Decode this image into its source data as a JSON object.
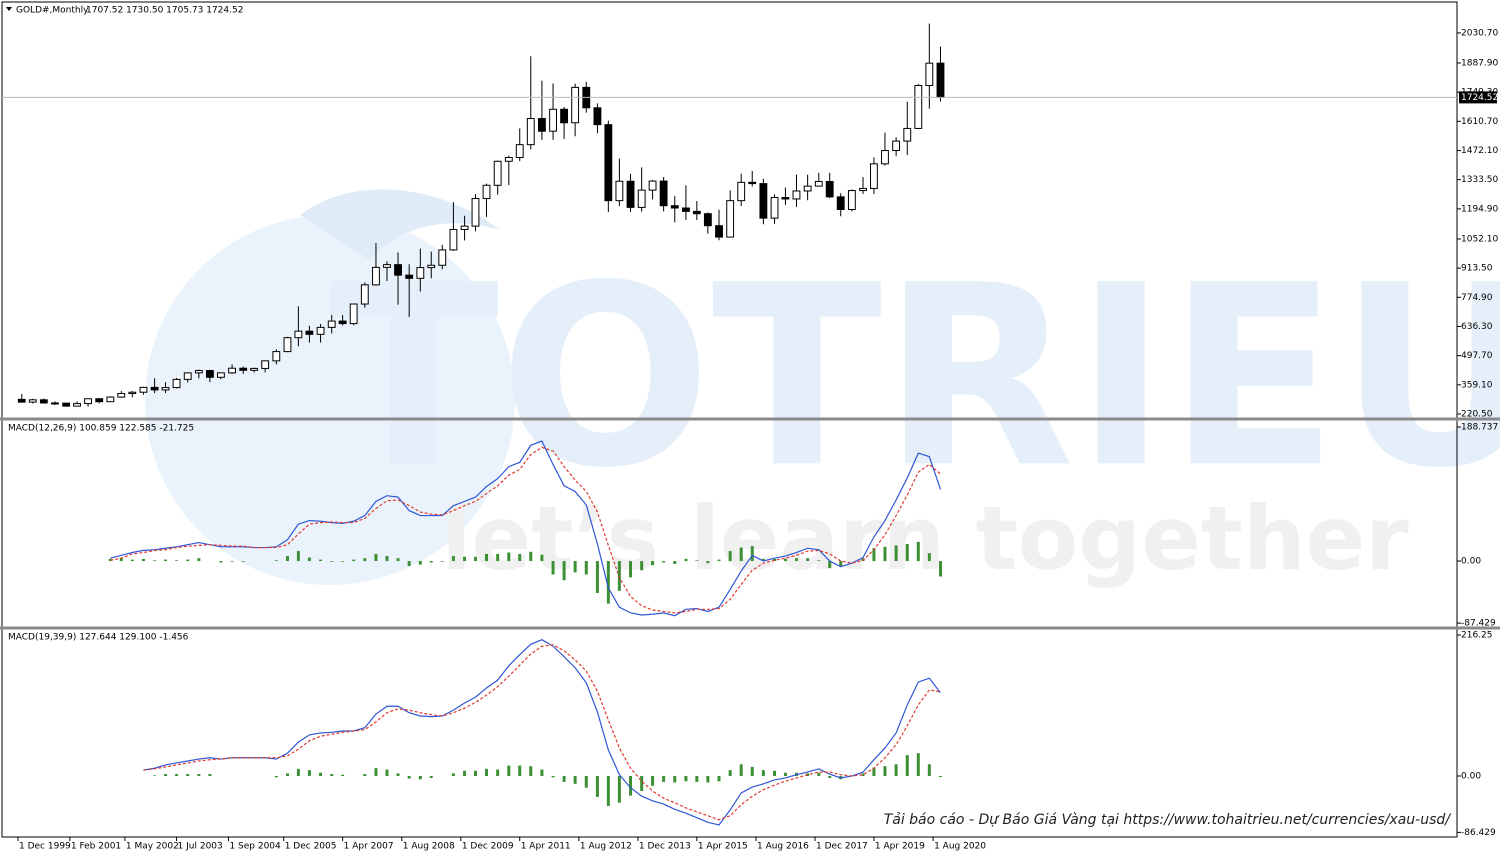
{
  "chart_data": [
    {
      "type": "candlestick",
      "title": "GOLD#,Monthly",
      "subtitle": "1707.52 1730.50 1705.73 1724.52",
      "x": [
        "2000-01-01",
        "2000-04-01",
        "2000-07-01",
        "2000-10-01",
        "2001-01-01",
        "2001-04-01",
        "2001-07-01",
        "2001-10-01",
        "2002-01-01",
        "2002-04-01",
        "2002-07-01",
        "2002-10-01",
        "2003-01-01",
        "2003-04-01",
        "2003-07-01",
        "2003-10-01",
        "2004-01-01",
        "2004-04-01",
        "2004-07-01",
        "2004-10-01",
        "2005-01-01",
        "2005-04-01",
        "2005-07-01",
        "2005-10-01",
        "2006-01-01",
        "2006-04-01",
        "2006-07-01",
        "2006-10-01",
        "2007-01-01",
        "2007-04-01",
        "2007-07-01",
        "2007-10-01",
        "2008-01-01",
        "2008-04-01",
        "2008-07-01",
        "2008-10-01",
        "2009-01-01",
        "2009-04-01",
        "2009-07-01",
        "2009-10-01",
        "2010-01-01",
        "2010-04-01",
        "2010-07-01",
        "2010-10-01",
        "2011-01-01",
        "2011-04-01",
        "2011-07-01",
        "2011-10-01",
        "2012-01-01",
        "2012-04-01",
        "2012-07-01",
        "2012-10-01",
        "2013-01-01",
        "2013-04-01",
        "2013-07-01",
        "2013-10-01",
        "2014-01-01",
        "2014-04-01",
        "2014-07-01",
        "2014-10-01",
        "2015-01-01",
        "2015-04-01",
        "2015-07-01",
        "2015-10-01",
        "2016-01-01",
        "2016-04-01",
        "2016-07-01",
        "2016-10-01",
        "2017-01-01",
        "2017-04-01",
        "2017-07-01",
        "2017-10-01",
        "2018-01-01",
        "2018-04-01",
        "2018-07-01",
        "2018-10-01",
        "2019-01-01",
        "2019-04-01",
        "2019-07-01",
        "2019-10-01",
        "2020-01-01",
        "2020-04-01",
        "2020-07-01",
        "2020-10-01"
      ],
      "open": [
        290,
        277,
        288,
        273,
        272,
        258,
        270,
        293,
        279,
        301,
        318,
        324,
        347,
        335,
        346,
        385,
        416,
        427,
        395,
        416,
        438,
        428,
        437,
        473,
        517,
        583,
        614,
        599,
        632,
        662,
        650,
        743,
        834,
        917,
        930,
        880,
        865,
        916,
        927,
        1000,
        1097,
        1113,
        1244,
        1307,
        1421,
        1439,
        1500,
        1624,
        1564,
        1668,
        1604,
        1772,
        1675,
        1595,
        1234,
        1326,
        1202,
        1284,
        1327,
        1210,
        1199,
        1183,
        1172,
        1115,
        1061,
        1234,
        1321,
        1315,
        1151,
        1249,
        1242,
        1280,
        1303,
        1325,
        1252,
        1192,
        1282,
        1292,
        1409,
        1472,
        1517,
        1577,
        1781,
        1887
      ],
      "high": [
        316,
        293,
        294,
        281,
        274,
        280,
        294,
        296,
        305,
        330,
        330,
        350,
        390,
        372,
        392,
        418,
        432,
        431,
        418,
        456,
        446,
        441,
        475,
        528,
        587,
        732,
        640,
        648,
        691,
        691,
        745,
        845,
        1033,
        946,
        988,
        932,
        1006,
        992,
        1024,
        1227,
        1162,
        1265,
        1315,
        1424,
        1448,
        1577,
        1920,
        1804,
        1791,
        1679,
        1790,
        1798,
        1696,
        1614,
        1434,
        1361,
        1392,
        1332,
        1346,
        1256,
        1307,
        1232,
        1178,
        1191,
        1283,
        1362,
        1375,
        1338,
        1264,
        1296,
        1358,
        1357,
        1366,
        1366,
        1269,
        1287,
        1346,
        1439,
        1557,
        1535,
        1704,
        1788,
        2075,
        1966
      ],
      "low": [
        275,
        270,
        270,
        263,
        255,
        256,
        256,
        271,
        277,
        297,
        300,
        312,
        320,
        320,
        342,
        370,
        390,
        372,
        386,
        411,
        411,
        418,
        418,
        456,
        514,
        542,
        560,
        560,
        603,
        641,
        642,
        725,
        830,
        852,
        740,
        681,
        802,
        865,
        908,
        995,
        1045,
        1088,
        1157,
        1262,
        1308,
        1422,
        1478,
        1523,
        1523,
        1527,
        1540,
        1652,
        1554,
        1180,
        1208,
        1180,
        1182,
        1240,
        1183,
        1131,
        1142,
        1142,
        1077,
        1046,
        1061,
        1208,
        1302,
        1122,
        1124,
        1214,
        1204,
        1236,
        1302,
        1246,
        1160,
        1183,
        1266,
        1266,
        1400,
        1445,
        1451,
        1576,
        1671,
        1705
      ],
      "close": [
        277,
        288,
        273,
        272,
        258,
        270,
        293,
        279,
        301,
        318,
        324,
        347,
        335,
        346,
        385,
        416,
        427,
        395,
        416,
        438,
        428,
        437,
        473,
        517,
        583,
        614,
        599,
        632,
        662,
        650,
        743,
        834,
        917,
        930,
        880,
        865,
        916,
        927,
        1000,
        1097,
        1113,
        1244,
        1307,
        1421,
        1439,
        1500,
        1624,
        1564,
        1668,
        1604,
        1772,
        1675,
        1595,
        1234,
        1326,
        1202,
        1284,
        1327,
        1210,
        1199,
        1183,
        1172,
        1115,
        1061,
        1234,
        1321,
        1315,
        1151,
        1249,
        1242,
        1280,
        1303,
        1325,
        1252,
        1192,
        1282,
        1292,
        1409,
        1472,
        1517,
        1577,
        1781,
        1887,
        1724.52
      ],
      "color": "#000000",
      "current_price": 1724.52,
      "ylim": [
        206.3,
        2177.6
      ],
      "yticks": [
        {
          "value": 2030.7,
          "label": "2030.70"
        },
        {
          "value": 1887.9,
          "label": "1887.90"
        },
        {
          "value": 1749.3,
          "label": "1749.30"
        },
        {
          "value": 1610.7,
          "label": "1610.70"
        },
        {
          "value": 1472.1,
          "label": "1472.10"
        },
        {
          "value": 1333.5,
          "label": "1333.50"
        },
        {
          "value": 1194.9,
          "label": "1194.90"
        },
        {
          "value": 1052.1,
          "label": "1052.10"
        },
        {
          "value": 913.5,
          "label": "913.50"
        },
        {
          "value": 774.9,
          "label": "774.90"
        },
        {
          "value": 636.3,
          "label": "636.30"
        },
        {
          "value": 497.7,
          "label": "497.70"
        },
        {
          "value": 359.1,
          "label": "359.10"
        },
        {
          "value": 220.5,
          "label": "220.50"
        }
      ],
      "xlim": [
        "1999-07-22",
        "2032-06-01"
      ],
      "xticks": [
        {
          "value": "1999-12-01",
          "label": "1 Dec 1999"
        },
        {
          "value": "2001-02-01",
          "label": "1 Feb 2001"
        },
        {
          "value": "2002-05-01",
          "label": "1 May 2002"
        },
        {
          "value": "2003-07-01",
          "label": "1 Jul 2003"
        },
        {
          "value": "2004-09-01",
          "label": "1 Sep 2004"
        },
        {
          "value": "2005-12-01",
          "label": "1 Dec 2005"
        },
        {
          "value": "2007-04-01",
          "label": "1 Apr 2007"
        },
        {
          "value": "2008-08-01",
          "label": "1 Aug 2008"
        },
        {
          "value": "2009-12-01",
          "label": "1 Dec 2009"
        },
        {
          "value": "2011-04-01",
          "label": "1 Apr 2011"
        },
        {
          "value": "2012-08-01",
          "label": "1 Aug 2012"
        },
        {
          "value": "2013-12-01",
          "label": "1 Dec 2013"
        },
        {
          "value": "2015-04-01",
          "label": "1 Apr 2015"
        },
        {
          "value": "2016-08-01",
          "label": "1 Aug 2016"
        },
        {
          "value": "2017-12-01",
          "label": "1 Dec 2017"
        },
        {
          "value": "2019-04-01",
          "label": "1 Apr 2019"
        },
        {
          "value": "2020-08-01",
          "label": "1 Aug 2020"
        }
      ]
    },
    {
      "type": "macd",
      "title": "MACD(12,26,9) 100.859 122.585 -21.725",
      "macd": {
        "color": "#2f56d6",
        "values": [
          null,
          null,
          null,
          null,
          null,
          null,
          null,
          null,
          4,
          8,
          12,
          15,
          16,
          18,
          20,
          23,
          26,
          23,
          20,
          20,
          20,
          19,
          19,
          20,
          30,
          52,
          57,
          56,
          54,
          53,
          56,
          64,
          84,
          92,
          90,
          71,
          64,
          64,
          64,
          78,
          84,
          90,
          105,
          116,
          133,
          139,
          163,
          169,
          136,
          106,
          98,
          79,
          24,
          -38,
          -65,
          -73,
          -76,
          -75,
          -73,
          -77,
          -68,
          -67,
          -71,
          -65,
          -40,
          -14,
          8,
          0,
          4,
          7,
          12,
          18,
          16,
          0,
          -8,
          -3,
          5,
          34,
          57,
          86,
          117,
          152,
          147,
          100.859
        ]
      },
      "signal": {
        "color": "#e03a2f",
        "dashed": true,
        "values": [
          null,
          null,
          null,
          null,
          null,
          null,
          null,
          null,
          1,
          4,
          10,
          12,
          15,
          16,
          19,
          21,
          22,
          23,
          22,
          21,
          21,
          19,
          19,
          19,
          23,
          38,
          52,
          54,
          55,
          54,
          54,
          60,
          74,
          85,
          86,
          78,
          69,
          66,
          65,
          71,
          78,
          84,
          95,
          106,
          121,
          129,
          150,
          160,
          155,
          133,
          114,
          98,
          69,
          22,
          -23,
          -50,
          -63,
          -69,
          -71,
          -73,
          -71,
          -68,
          -68,
          -67,
          -54,
          -33,
          -13,
          -3,
          1,
          4,
          8,
          14,
          15,
          10,
          0,
          -3,
          1,
          16,
          37,
          64,
          93,
          125,
          136,
          122.585
        ]
      },
      "histogram": {
        "color": "#3c8f34",
        "values": [
          null,
          null,
          null,
          null,
          null,
          null,
          null,
          null,
          3,
          4,
          2,
          3,
          1,
          2,
          1,
          2,
          4,
          0,
          -2,
          -1,
          -1,
          0,
          0,
          1,
          7,
          14,
          5,
          2,
          -1,
          -1,
          2,
          4,
          10,
          7,
          4,
          -7,
          -5,
          -2,
          -1,
          7,
          6,
          6,
          10,
          10,
          12,
          10,
          13,
          9,
          -19,
          -27,
          -16,
          -19,
          -45,
          -60,
          -42,
          -23,
          -13,
          -6,
          -2,
          -4,
          3,
          1,
          -3,
          2,
          14,
          19,
          21,
          3,
          3,
          3,
          4,
          4,
          1,
          -10,
          -8,
          0,
          4,
          18,
          20,
          22,
          24,
          27,
          11,
          -21.725
        ]
      },
      "ylim": [
        -91.5,
        197.2
      ],
      "yticks": [
        188.737,
        {
          "value": 0,
          "label": "0.00"
        },
        -87.429
      ]
    },
    {
      "type": "macd",
      "title": "MACD(19,39,9) 127.644 129.100 -1.456",
      "macd": {
        "color": "#2f56d6",
        "values": [
          null,
          null,
          null,
          null,
          null,
          null,
          null,
          null,
          null,
          null,
          null,
          9,
          12,
          17,
          20,
          23,
          26,
          28,
          26,
          28,
          28,
          28,
          28,
          26,
          35,
          52,
          63,
          66,
          67,
          69,
          69,
          74,
          95,
          107,
          107,
          97,
          92,
          91,
          92,
          101,
          112,
          121,
          135,
          147,
          169,
          186,
          202,
          209,
          199,
          183,
          166,
          143,
          98,
          40,
          2,
          -18,
          -31,
          -38,
          -43,
          -51,
          -57,
          -64,
          -71,
          -75,
          -52,
          -26,
          -17,
          -12,
          -6,
          -3,
          2,
          6,
          11,
          3,
          -3,
          0,
          6,
          25,
          43,
          66,
          109,
          144,
          150,
          127.644
        ]
      },
      "signal": {
        "color": "#e03a2f",
        "dashed": true,
        "values": [
          null,
          null,
          null,
          null,
          null,
          null,
          null,
          null,
          null,
          null,
          null,
          9,
          11,
          14,
          17,
          20,
          23,
          25,
          26,
          28,
          28,
          28,
          28,
          28,
          31,
          41,
          54,
          61,
          64,
          67,
          69,
          71,
          83,
          97,
          103,
          101,
          97,
          94,
          92,
          97,
          104,
          113,
          124,
          137,
          153,
          170,
          187,
          199,
          201,
          192,
          178,
          161,
          130,
          86,
          43,
          12,
          -8,
          -23,
          -34,
          -41,
          -49,
          -55,
          -61,
          -67,
          -61,
          -44,
          -31,
          -21,
          -14,
          -8,
          -3,
          2,
          6,
          6,
          2,
          0,
          2,
          12,
          28,
          48,
          77,
          109,
          132,
          129.1
        ]
      },
      "histogram": {
        "color": "#3c8f34",
        "values": [
          null,
          null,
          null,
          null,
          null,
          null,
          null,
          null,
          null,
          null,
          null,
          0,
          1,
          3,
          3,
          3,
          3,
          3,
          0,
          0,
          0,
          0,
          0,
          -2,
          4,
          11,
          9,
          5,
          3,
          2,
          0,
          3,
          12,
          10,
          4,
          -4,
          -5,
          -3,
          0,
          4,
          8,
          8,
          11,
          10,
          16,
          16,
          15,
          10,
          -2,
          -9,
          -12,
          -18,
          -32,
          -46,
          -41,
          -30,
          -23,
          -15,
          -9,
          -10,
          -8,
          -9,
          -10,
          -8,
          9,
          18,
          14,
          9,
          8,
          5,
          5,
          4,
          5,
          -3,
          -5,
          0,
          4,
          13,
          15,
          18,
          32,
          35,
          18,
          -1.456
        ]
      },
      "ylim": [
        -92,
        223.9
      ],
      "yticks": [
        216.25,
        {
          "value": 0,
          "label": "0.00"
        },
        -86.429
      ]
    }
  ],
  "watermark": {
    "brand": "TOTRIEU",
    "slogan": "let’s learn together"
  },
  "footer": "Tải báo cáo - Dự Báo Giá Vàng tại https://www.tohaitrieu.net/currencies/xau-usd/"
}
